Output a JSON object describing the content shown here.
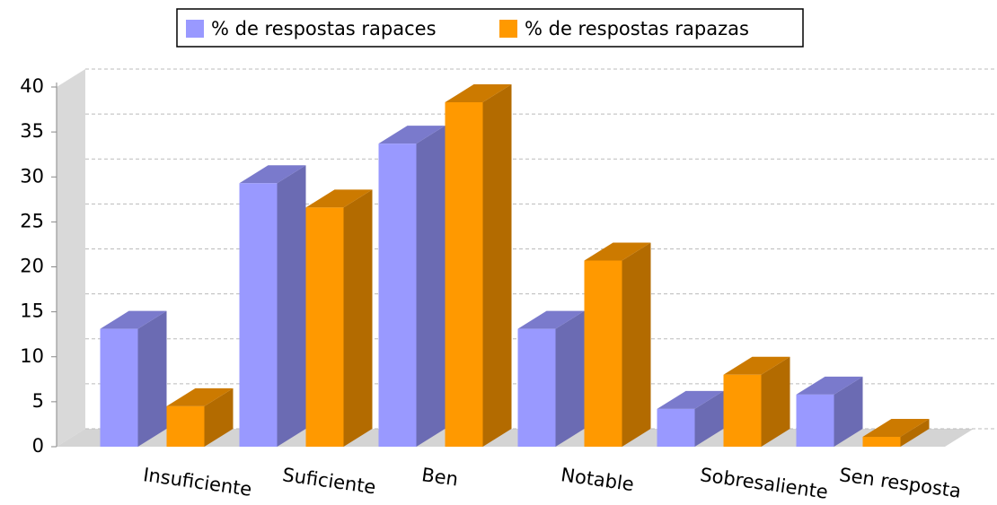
{
  "chart_data": {
    "type": "bar3d",
    "categories": [
      "Insuficiente",
      "Suficiente",
      "Ben",
      "Notable",
      "Sobresaliente",
      "Sen resposta"
    ],
    "series": [
      {
        "name": "% de respostas rapaces",
        "color": "#9999ff",
        "values": [
          13.1,
          29.3,
          33.7,
          13.1,
          4.2,
          5.8
        ]
      },
      {
        "name": "% de respostas rapazas",
        "color": "#ff9900",
        "values": [
          4.5,
          26.6,
          38.3,
          20.7,
          8.0,
          1.1
        ]
      }
    ],
    "ylim": [
      0,
      40
    ],
    "yticks": [
      0,
      5,
      10,
      15,
      20,
      25,
      30,
      35,
      40
    ],
    "grid": true,
    "legend": "top"
  }
}
